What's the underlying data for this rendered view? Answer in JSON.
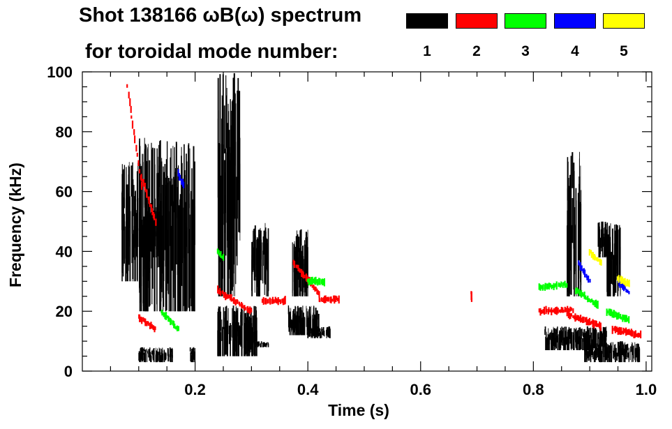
{
  "header": {
    "title": "Shot 138166 ωB(ω) spectrum",
    "subtitle": "for toroidal mode number:"
  },
  "legend": [
    {
      "mode": "1",
      "color": "#000000"
    },
    {
      "mode": "2",
      "color": "#ff0000"
    },
    {
      "mode": "3",
      "color": "#00ff00"
    },
    {
      "mode": "4",
      "color": "#0000ff"
    },
    {
      "mode": "5",
      "color": "#ffff00"
    }
  ],
  "chart_data": {
    "type": "scatter",
    "title": "Shot 138166 ωB(ω) spectrum",
    "xlabel": "Time (s)",
    "ylabel": "Frequency (kHz)",
    "xlim": [
      0.0,
      1.01
    ],
    "ylim": [
      0,
      100
    ],
    "x_ticks": [
      {
        "value": 0.2,
        "label": "0.2"
      },
      {
        "value": 0.4,
        "label": "0.4"
      },
      {
        "value": 0.6,
        "label": "0.6"
      },
      {
        "value": 0.8,
        "label": "0.8"
      },
      {
        "value": 1.0,
        "label": "1.0"
      }
    ],
    "y_ticks": [
      {
        "value": 0,
        "label": "0"
      },
      {
        "value": 20,
        "label": "20"
      },
      {
        "value": 40,
        "label": "40"
      },
      {
        "value": 60,
        "label": "60"
      },
      {
        "value": 80,
        "label": "80"
      },
      {
        "value": 100,
        "label": "100"
      }
    ],
    "series": [
      {
        "name": "n=1",
        "color": "#000000",
        "regions": [
          {
            "t": [
              0.07,
              0.1
            ],
            "f": [
              30,
              70
            ]
          },
          {
            "t": [
              0.09,
              0.14
            ],
            "f": [
              38,
              55
            ]
          },
          {
            "t": [
              0.1,
              0.2
            ],
            "f": [
              20,
              78
            ]
          },
          {
            "t": [
              0.1,
              0.16
            ],
            "f": [
              3,
              8
            ]
          },
          {
            "t": [
              0.19,
              0.2
            ],
            "f": [
              3,
              8
            ]
          },
          {
            "t": [
              0.24,
              0.31
            ],
            "f": [
              5,
              22
            ]
          },
          {
            "t": [
              0.305,
              0.33
            ],
            "f": [
              8,
              10
            ]
          },
          {
            "t": [
              0.24,
              0.28
            ],
            "f": [
              25,
              100
            ]
          },
          {
            "t": [
              0.3,
              0.33
            ],
            "f": [
              25,
              50
            ]
          },
          {
            "t": [
              0.365,
              0.42
            ],
            "f": [
              12,
              22
            ]
          },
          {
            "t": [
              0.4,
              0.44
            ],
            "f": [
              11,
              15
            ]
          },
          {
            "t": [
              0.37,
              0.4
            ],
            "f": [
              25,
              48
            ]
          },
          {
            "t": [
              0.82,
              0.93
            ],
            "f": [
              7,
              15
            ]
          },
          {
            "t": [
              0.89,
              0.99
            ],
            "f": [
              3,
              10
            ]
          },
          {
            "t": [
              0.86,
              0.885
            ],
            "f": [
              25,
              75
            ]
          },
          {
            "t": [
              0.93,
              0.955
            ],
            "f": [
              25,
              50
            ]
          },
          {
            "t": [
              0.915,
              0.935
            ],
            "f": [
              38,
              50
            ]
          }
        ]
      },
      {
        "name": "n=2",
        "color": "#ff0000",
        "segments": [
          {
            "t": [
              0.08,
              0.105
            ],
            "f": [
              95,
              62
            ]
          },
          {
            "t": [
              0.105,
              0.13
            ],
            "f": [
              65,
              50
            ]
          },
          {
            "t": [
              0.1,
              0.13
            ],
            "f": [
              18,
              14
            ]
          },
          {
            "t": [
              0.24,
              0.3
            ],
            "f": [
              27,
              20
            ]
          },
          {
            "t": [
              0.32,
              0.36
            ],
            "f": [
              23.5,
              23.5
            ]
          },
          {
            "t": [
              0.375,
              0.42
            ],
            "f": [
              36,
              26
            ]
          },
          {
            "t": [
              0.42,
              0.455
            ],
            "f": [
              24,
              24
            ]
          },
          {
            "t": [
              0.81,
              0.87
            ],
            "f": [
              20,
              20.5
            ]
          },
          {
            "t": [
              0.86,
              0.92
            ],
            "f": [
              19,
              15
            ]
          },
          {
            "t": [
              0.94,
              0.99
            ],
            "f": [
              14,
              12
            ]
          },
          {
            "t": [
              0.69,
              0.69
            ],
            "f": [
              26,
              24
            ]
          }
        ]
      },
      {
        "name": "n=3",
        "color": "#00ff00",
        "segments": [
          {
            "t": [
              0.81,
              0.86
            ],
            "f": [
              28,
              29
            ]
          },
          {
            "t": [
              0.875,
              0.915
            ],
            "f": [
              27,
              22
            ]
          },
          {
            "t": [
              0.93,
              0.97
            ],
            "f": [
              20,
              17
            ]
          },
          {
            "t": [
              0.14,
              0.17
            ],
            "f": [
              20,
              14
            ]
          },
          {
            "t": [
              0.24,
              0.25
            ],
            "f": [
              40,
              38
            ]
          },
          {
            "t": [
              0.4,
              0.43
            ],
            "f": [
              30,
              30
            ]
          }
        ]
      },
      {
        "name": "n=4",
        "color": "#0000ff",
        "segments": [
          {
            "t": [
              0.88,
              0.9
            ],
            "f": [
              36,
              30
            ]
          },
          {
            "t": [
              0.95,
              0.97
            ],
            "f": [
              30,
              26
            ]
          },
          {
            "t": [
              0.17,
              0.18
            ],
            "f": [
              66,
              62
            ]
          }
        ]
      },
      {
        "name": "n=5",
        "color": "#ffff00",
        "segments": [
          {
            "t": [
              0.9,
              0.92
            ],
            "f": [
              40,
              36
            ]
          },
          {
            "t": [
              0.95,
              0.97
            ],
            "f": [
              31,
              29
            ]
          }
        ]
      }
    ]
  }
}
